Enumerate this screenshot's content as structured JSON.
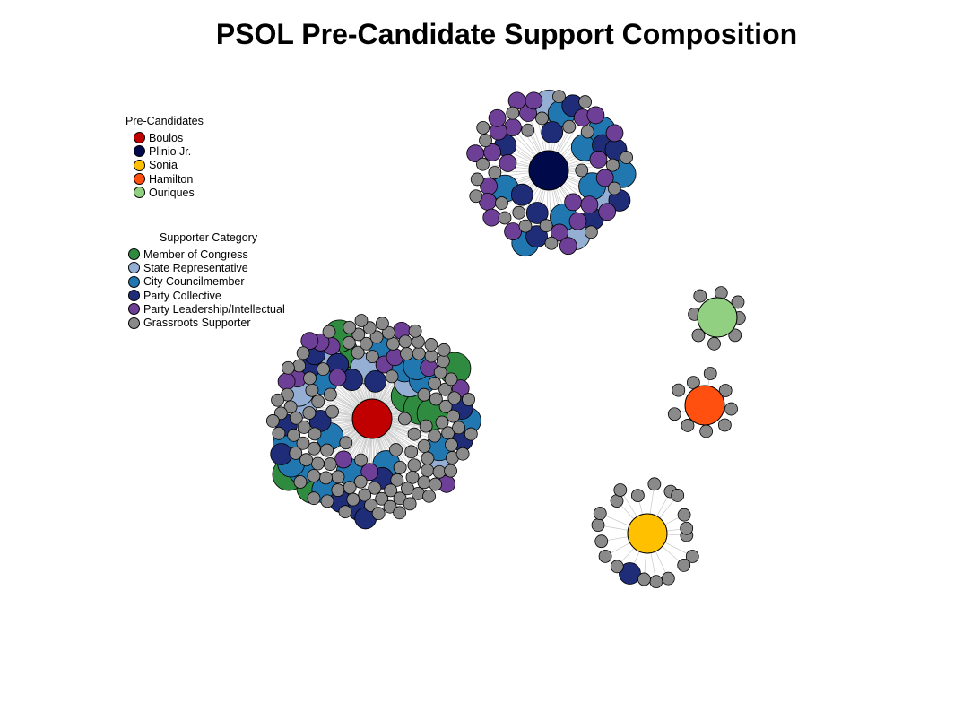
{
  "title": "PSOL Pre-Candidate Support Composition",
  "legend_candidates": {
    "title": "Pre-Candidates",
    "items": [
      {
        "label": "Boulos",
        "color": "#c00000"
      },
      {
        "label": "Plinio Jr.",
        "color": "#000a4a"
      },
      {
        "label": "Sonia",
        "color": "#ffc000"
      },
      {
        "label": "Hamilton",
        "color": "#ff5010"
      },
      {
        "label": "Ouriques",
        "color": "#90d080"
      }
    ]
  },
  "legend_categories": {
    "title": "Supporter Category",
    "items": [
      {
        "label": "Member of Congress",
        "color": "#2e8b3f"
      },
      {
        "label": "State Representative",
        "color": "#94aed4"
      },
      {
        "label": "City Councilmember",
        "color": "#2177b0"
      },
      {
        "label": "Party Collective",
        "color": "#1f2c78"
      },
      {
        "label": "Party Leadership/Intellectual",
        "color": "#6e3f96"
      },
      {
        "label": "Grassroots Supporter",
        "color": "#8a8a8a"
      }
    ]
  },
  "clusters": [
    {
      "candidate": "Boulos",
      "supporters": {
        "Member of Congress": 9,
        "State Representative": 6,
        "City Councilmember": 14,
        "Party Collective": 14,
        "Party Leadership/Intellectual": 14,
        "Grassroots Supporter": 110
      }
    },
    {
      "candidate": "Plinio Jr.",
      "supporters": {
        "Member of Congress": 0,
        "State Representative": 3,
        "City Councilmember": 8,
        "Party Collective": 10,
        "Party Leadership/Intellectual": 24,
        "Grassroots Supporter": 24
      }
    },
    {
      "candidate": "Sonia",
      "supporters": {
        "Member of Congress": 0,
        "State Representative": 0,
        "City Councilmember": 0,
        "Party Collective": 1,
        "Party Leadership/Intellectual": 0,
        "Grassroots Supporter": 19
      }
    },
    {
      "candidate": "Hamilton",
      "supporters": {
        "Member of Congress": 0,
        "State Representative": 0,
        "City Councilmember": 0,
        "Party Collective": 0,
        "Party Leadership/Intellectual": 0,
        "Grassroots Supporter": 9
      }
    },
    {
      "candidate": "Ouriques",
      "supporters": {
        "Member of Congress": 0,
        "State Representative": 0,
        "City Councilmember": 0,
        "Party Collective": 0,
        "Party Leadership/Intellectual": 0,
        "Grassroots Supporter": 8
      }
    }
  ]
}
